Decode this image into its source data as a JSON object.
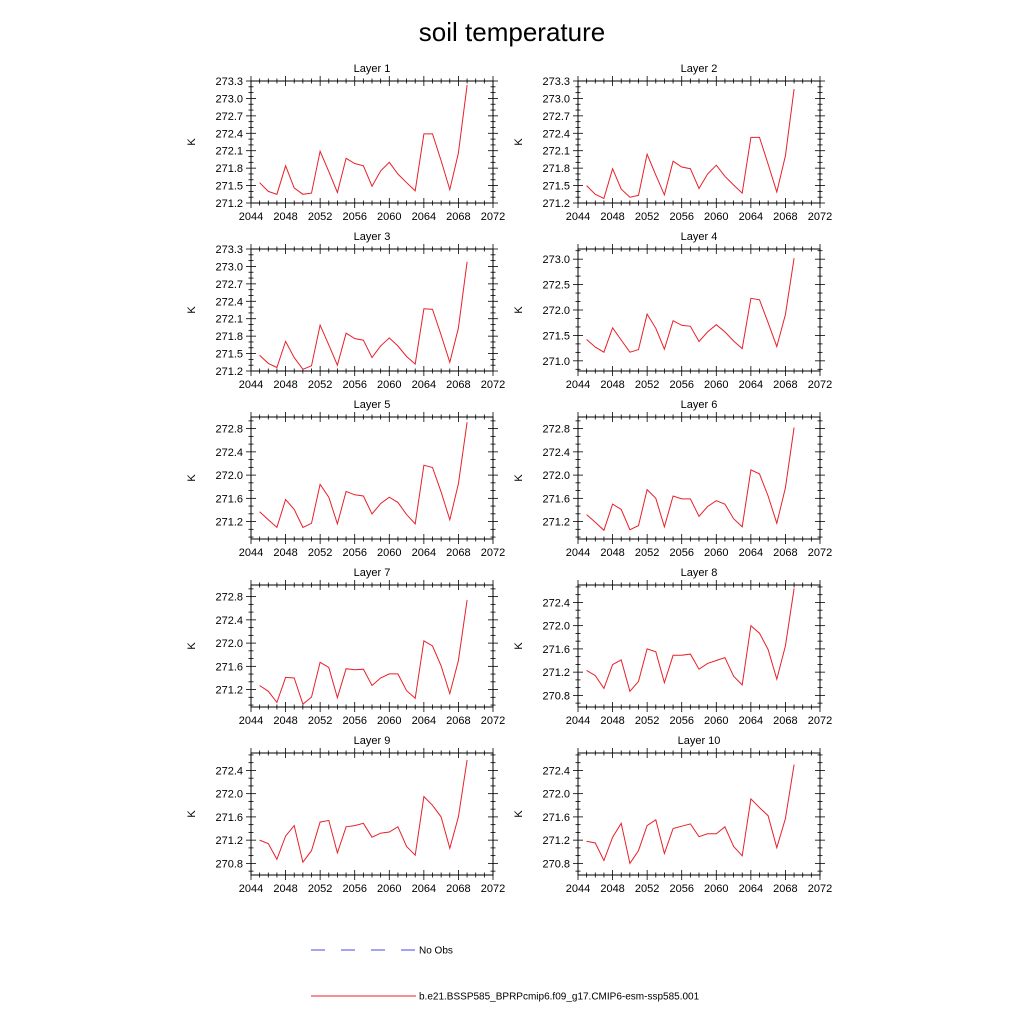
{
  "title": "soil temperature",
  "legend": {
    "items": [
      {
        "label": "No Obs",
        "color": "#4a4ae8",
        "dash": "dashed"
      },
      {
        "label": "b.e21.BSSP585_BPRPcmip6.f09_g17.CMIP6-esm-ssp585.001",
        "color": "#e8202a",
        "dash": "solid"
      }
    ]
  },
  "series_color": "#e8202a",
  "chart_data": [
    {
      "type": "line",
      "title": "Layer 1",
      "ylabel": "K",
      "xlim": [
        2044,
        2072
      ],
      "xticks": [
        2044,
        2048,
        2052,
        2056,
        2060,
        2064,
        2068,
        2072
      ],
      "ylim": [
        271.2,
        273.3
      ],
      "yticks": [
        "271.2",
        "271.5",
        "271.8",
        "272.1",
        "272.4",
        "272.7",
        "273.0",
        "273.3"
      ],
      "x": [
        2045,
        2046,
        2047,
        2048,
        2049,
        2050,
        2051,
        2052,
        2053,
        2054,
        2055,
        2056,
        2057,
        2058,
        2059,
        2060,
        2061,
        2062,
        2063,
        2064,
        2065,
        2066,
        2067,
        2068,
        2069
      ],
      "series": [
        {
          "values": [
            271.55,
            271.4,
            271.35,
            271.84,
            271.46,
            271.35,
            271.37,
            272.09,
            271.74,
            271.38,
            271.97,
            271.88,
            271.84,
            271.49,
            271.75,
            271.9,
            271.7,
            271.55,
            271.41,
            272.39,
            272.39,
            271.93,
            271.43,
            272.06,
            273.23
          ]
        }
      ]
    },
    {
      "type": "line",
      "title": "Layer 2",
      "ylabel": "K",
      "xlim": [
        2044,
        2072
      ],
      "xticks": [
        2044,
        2048,
        2052,
        2056,
        2060,
        2064,
        2068,
        2072
      ],
      "ylim": [
        271.2,
        273.3
      ],
      "yticks": [
        "271.2",
        "271.5",
        "271.8",
        "272.1",
        "272.4",
        "272.7",
        "273.0",
        "273.3"
      ],
      "x": [
        2045,
        2046,
        2047,
        2048,
        2049,
        2050,
        2051,
        2052,
        2053,
        2054,
        2055,
        2056,
        2057,
        2058,
        2059,
        2060,
        2061,
        2062,
        2063,
        2064,
        2065,
        2066,
        2067,
        2068,
        2069
      ],
      "series": [
        {
          "values": [
            271.5,
            271.35,
            271.28,
            271.79,
            271.44,
            271.3,
            271.33,
            272.04,
            271.68,
            271.34,
            271.92,
            271.82,
            271.79,
            271.45,
            271.7,
            271.85,
            271.66,
            271.51,
            271.37,
            272.33,
            272.33,
            271.87,
            271.39,
            272.01,
            273.16
          ]
        }
      ]
    },
    {
      "type": "line",
      "title": "Layer 3",
      "ylabel": "K",
      "xlim": [
        2044,
        2072
      ],
      "xticks": [
        2044,
        2048,
        2052,
        2056,
        2060,
        2064,
        2068,
        2072
      ],
      "ylim": [
        271.2,
        273.3
      ],
      "yticks": [
        "271.2",
        "271.5",
        "271.8",
        "272.1",
        "272.4",
        "272.7",
        "273.0",
        "273.3"
      ],
      "x": [
        2045,
        2046,
        2047,
        2048,
        2049,
        2050,
        2051,
        2052,
        2053,
        2054,
        2055,
        2056,
        2057,
        2058,
        2059,
        2060,
        2061,
        2062,
        2063,
        2064,
        2065,
        2066,
        2067,
        2068,
        2069
      ],
      "series": [
        {
          "values": [
            271.47,
            271.33,
            271.26,
            271.71,
            271.43,
            271.23,
            271.29,
            271.99,
            271.65,
            271.3,
            271.85,
            271.76,
            271.73,
            271.43,
            271.63,
            271.77,
            271.63,
            271.45,
            271.32,
            272.27,
            272.26,
            271.82,
            271.35,
            271.94,
            273.08
          ]
        }
      ]
    },
    {
      "type": "line",
      "title": "Layer 4",
      "ylabel": "K",
      "xlim": [
        2044,
        2072
      ],
      "xticks": [
        2044,
        2048,
        2052,
        2056,
        2060,
        2064,
        2068,
        2072
      ],
      "ylim": [
        270.8,
        273.2
      ],
      "yticks": [
        "271.0",
        "271.5",
        "272.0",
        "272.5",
        "273.0"
      ],
      "x": [
        2045,
        2046,
        2047,
        2048,
        2049,
        2050,
        2051,
        2052,
        2053,
        2054,
        2055,
        2056,
        2057,
        2058,
        2059,
        2060,
        2061,
        2062,
        2063,
        2064,
        2065,
        2066,
        2067,
        2068,
        2069
      ],
      "series": [
        {
          "values": [
            271.42,
            271.27,
            271.17,
            271.65,
            271.41,
            271.17,
            271.22,
            271.92,
            271.64,
            271.23,
            271.79,
            271.7,
            271.68,
            271.38,
            271.57,
            271.71,
            271.57,
            271.39,
            271.24,
            272.23,
            272.2,
            271.75,
            271.28,
            271.91,
            273.02
          ]
        }
      ]
    },
    {
      "type": "line",
      "title": "Layer 5",
      "ylabel": "K",
      "xlim": [
        2044,
        2072
      ],
      "xticks": [
        2044,
        2048,
        2052,
        2056,
        2060,
        2064,
        2068,
        2072
      ],
      "ylim": [
        270.9,
        273.0
      ],
      "yticks": [
        "271.2",
        "271.6",
        "272.0",
        "272.4",
        "272.8"
      ],
      "x": [
        2045,
        2046,
        2047,
        2048,
        2049,
        2050,
        2051,
        2052,
        2053,
        2054,
        2055,
        2056,
        2057,
        2058,
        2059,
        2060,
        2061,
        2062,
        2063,
        2064,
        2065,
        2066,
        2067,
        2068,
        2069
      ],
      "series": [
        {
          "values": [
            271.37,
            271.23,
            271.1,
            271.58,
            271.41,
            271.1,
            271.17,
            271.84,
            271.62,
            271.16,
            271.72,
            271.66,
            271.64,
            271.33,
            271.51,
            271.62,
            271.53,
            271.32,
            271.16,
            272.17,
            272.13,
            271.71,
            271.23,
            271.85,
            272.91
          ]
        }
      ]
    },
    {
      "type": "line",
      "title": "Layer 6",
      "ylabel": "K",
      "xlim": [
        2044,
        2072
      ],
      "xticks": [
        2044,
        2048,
        2052,
        2056,
        2060,
        2064,
        2068,
        2072
      ],
      "ylim": [
        270.9,
        273.0
      ],
      "yticks": [
        "271.2",
        "271.6",
        "272.0",
        "272.4",
        "272.8"
      ],
      "x": [
        2045,
        2046,
        2047,
        2048,
        2049,
        2050,
        2051,
        2052,
        2053,
        2054,
        2055,
        2056,
        2057,
        2058,
        2059,
        2060,
        2061,
        2062,
        2063,
        2064,
        2065,
        2066,
        2067,
        2068,
        2069
      ],
      "series": [
        {
          "values": [
            271.32,
            271.19,
            271.05,
            271.5,
            271.41,
            271.06,
            271.13,
            271.75,
            271.6,
            271.11,
            271.64,
            271.59,
            271.59,
            271.29,
            271.46,
            271.56,
            271.5,
            271.25,
            271.11,
            272.09,
            272.02,
            271.64,
            271.17,
            271.78,
            272.82
          ]
        }
      ]
    },
    {
      "type": "line",
      "title": "Layer 7",
      "ylabel": "K",
      "xlim": [
        2044,
        2072
      ],
      "xticks": [
        2044,
        2048,
        2052,
        2056,
        2060,
        2064,
        2068,
        2072
      ],
      "ylim": [
        270.9,
        273.0
      ],
      "yticks": [
        "271.2",
        "271.6",
        "272.0",
        "272.4",
        "272.8"
      ],
      "x": [
        2045,
        2046,
        2047,
        2048,
        2049,
        2050,
        2051,
        2052,
        2053,
        2054,
        2055,
        2056,
        2057,
        2058,
        2059,
        2060,
        2061,
        2062,
        2063,
        2064,
        2065,
        2066,
        2067,
        2068,
        2069
      ],
      "series": [
        {
          "values": [
            271.27,
            271.17,
            270.98,
            271.41,
            271.4,
            270.95,
            271.07,
            271.67,
            271.58,
            271.06,
            271.56,
            271.54,
            271.55,
            271.27,
            271.4,
            271.47,
            271.47,
            271.18,
            271.05,
            272.04,
            271.95,
            271.61,
            271.13,
            271.7,
            272.74
          ]
        }
      ]
    },
    {
      "type": "line",
      "title": "Layer 8",
      "ylabel": "K",
      "xlim": [
        2044,
        2072
      ],
      "xticks": [
        2044,
        2048,
        2052,
        2056,
        2060,
        2064,
        2068,
        2072
      ],
      "ylim": [
        270.6,
        272.7
      ],
      "yticks": [
        "270.8",
        "271.2",
        "271.6",
        "272.0",
        "272.4"
      ],
      "x": [
        2045,
        2046,
        2047,
        2048,
        2049,
        2050,
        2051,
        2052,
        2053,
        2054,
        2055,
        2056,
        2057,
        2058,
        2059,
        2060,
        2061,
        2062,
        2063,
        2064,
        2065,
        2066,
        2067,
        2068,
        2069
      ],
      "series": [
        {
          "values": [
            271.23,
            271.14,
            270.92,
            271.33,
            271.41,
            270.87,
            271.04,
            271.6,
            271.55,
            271.02,
            271.49,
            271.49,
            271.51,
            271.25,
            271.35,
            271.4,
            271.45,
            271.13,
            270.98,
            272.0,
            271.87,
            271.59,
            271.08,
            271.65,
            272.64
          ]
        }
      ]
    },
    {
      "type": "line",
      "title": "Layer 9",
      "ylabel": "K",
      "xlim": [
        2044,
        2072
      ],
      "xticks": [
        2044,
        2048,
        2052,
        2056,
        2060,
        2064,
        2068,
        2072
      ],
      "ylim": [
        270.6,
        272.7
      ],
      "yticks": [
        "270.8",
        "271.2",
        "271.6",
        "272.0",
        "272.4"
      ],
      "x": [
        2045,
        2046,
        2047,
        2048,
        2049,
        2050,
        2051,
        2052,
        2053,
        2054,
        2055,
        2056,
        2057,
        2058,
        2059,
        2060,
        2061,
        2062,
        2063,
        2064,
        2065,
        2066,
        2067,
        2068,
        2069
      ],
      "series": [
        {
          "values": [
            271.2,
            271.14,
            270.87,
            271.27,
            271.45,
            270.82,
            271.02,
            271.51,
            271.54,
            270.98,
            271.43,
            271.45,
            271.49,
            271.25,
            271.32,
            271.34,
            271.43,
            271.09,
            270.94,
            271.95,
            271.8,
            271.6,
            271.06,
            271.6,
            272.58
          ]
        }
      ]
    },
    {
      "type": "line",
      "title": "Layer 10",
      "ylabel": "K",
      "xlim": [
        2044,
        2072
      ],
      "xticks": [
        2044,
        2048,
        2052,
        2056,
        2060,
        2064,
        2068,
        2072
      ],
      "ylim": [
        270.6,
        272.7
      ],
      "yticks": [
        "270.8",
        "271.2",
        "271.6",
        "272.0",
        "272.4"
      ],
      "x": [
        2045,
        2046,
        2047,
        2048,
        2049,
        2050,
        2051,
        2052,
        2053,
        2054,
        2055,
        2056,
        2057,
        2058,
        2059,
        2060,
        2061,
        2062,
        2063,
        2064,
        2065,
        2066,
        2067,
        2068,
        2069
      ],
      "series": [
        {
          "values": [
            271.18,
            271.15,
            270.85,
            271.25,
            271.49,
            270.8,
            271.02,
            271.45,
            271.55,
            270.97,
            271.4,
            271.44,
            271.48,
            271.26,
            271.31,
            271.31,
            271.43,
            271.09,
            270.93,
            271.91,
            271.76,
            271.62,
            271.07,
            271.57,
            272.5
          ]
        }
      ]
    }
  ]
}
